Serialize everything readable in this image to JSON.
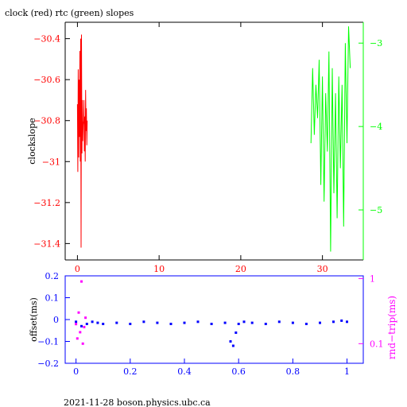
{
  "page": {
    "title": "clock (red) rtc (green) slopes",
    "footer": "2021-11-28  boson.physics.ubc.ca"
  },
  "colors": {
    "clock": "#ff0000",
    "rtc": "#00ff00",
    "offset": "#0000ff",
    "rndtrip": "#ff00ff",
    "axis": "#000000"
  },
  "chart_data": [
    {
      "type": "line",
      "title": "clock (red) rtc (green) slopes",
      "ylabel": "clockslope",
      "xlim": [
        -1.5,
        35
      ],
      "ylim": [
        -31.48,
        -30.32
      ],
      "y2lim": [
        -5.6,
        -2.75
      ],
      "x_ticks": [
        0,
        10,
        20,
        30
      ],
      "y_ticks": [
        -30.4,
        -30.6,
        -30.8,
        -31,
        -31.2,
        -31.4
      ],
      "y2_ticks": [
        -3,
        -4,
        -5
      ],
      "grid": false,
      "series": [
        {
          "name": "clock",
          "axis": "left",
          "x": [
            0.0,
            0.05,
            0.1,
            0.15,
            0.2,
            0.25,
            0.3,
            0.35,
            0.4,
            0.45,
            0.5,
            0.55,
            0.6,
            0.65,
            0.7,
            0.75,
            0.8,
            0.85,
            0.9,
            0.95,
            1.0,
            1.05,
            1.1,
            1.15,
            1.2
          ],
          "y": [
            -30.72,
            -31.05,
            -30.55,
            -30.98,
            -30.6,
            -30.88,
            -30.46,
            -31.0,
            -30.4,
            -31.42,
            -30.38,
            -30.96,
            -30.7,
            -30.9,
            -30.82,
            -30.8,
            -30.7,
            -30.95,
            -30.78,
            -31.0,
            -30.65,
            -30.85,
            -30.74,
            -30.92,
            -30.8
          ]
        },
        {
          "name": "rtc",
          "axis": "right",
          "x": [
            28.6,
            28.8,
            29.0,
            29.2,
            29.4,
            29.6,
            29.8,
            30.0,
            30.2,
            30.4,
            30.6,
            30.8,
            31.0,
            31.2,
            31.4,
            31.6,
            31.8,
            32.0,
            32.2,
            32.4,
            32.6,
            32.8,
            33.0,
            33.2,
            33.4
          ],
          "y": [
            -4.2,
            -3.3,
            -4.1,
            -3.5,
            -3.9,
            -3.2,
            -4.7,
            -3.4,
            -4.9,
            -3.6,
            -4.3,
            -3.1,
            -5.5,
            -3.3,
            -4.8,
            -3.6,
            -5.1,
            -3.4,
            -4.5,
            -3.5,
            -5.2,
            -3.0,
            -4.2,
            -2.8,
            -3.3
          ]
        }
      ]
    },
    {
      "type": "scatter",
      "ylabel": "offset(ms)",
      "y2label": "rnd−trip(ms)",
      "xlim": [
        -0.04,
        1.06
      ],
      "ylim": [
        -0.2,
        0.2
      ],
      "y2lim": [
        0.05,
        1.1
      ],
      "y2_scale": "log",
      "x_ticks": [
        0,
        0.2,
        0.4,
        0.6,
        0.8,
        1
      ],
      "y_ticks": [
        0.2,
        0.1,
        0,
        -0.1,
        -0.2
      ],
      "y2_ticks": [
        1,
        0.1
      ],
      "grid": false,
      "series": [
        {
          "name": "offset",
          "axis": "left",
          "x": [
            0.0,
            0.02,
            0.04,
            0.06,
            0.08,
            0.1,
            0.15,
            0.2,
            0.25,
            0.3,
            0.35,
            0.4,
            0.45,
            0.5,
            0.55,
            0.57,
            0.58,
            0.59,
            0.6,
            0.62,
            0.65,
            0.7,
            0.75,
            0.8,
            0.85,
            0.9,
            0.95,
            0.98,
            1.0
          ],
          "y": [
            -0.01,
            -0.03,
            -0.02,
            -0.01,
            -0.015,
            -0.02,
            -0.015,
            -0.02,
            -0.01,
            -0.015,
            -0.02,
            -0.015,
            -0.01,
            -0.02,
            -0.015,
            -0.1,
            -0.12,
            -0.06,
            -0.02,
            -0.01,
            -0.015,
            -0.02,
            -0.01,
            -0.015,
            -0.02,
            -0.015,
            -0.01,
            -0.005,
            -0.01
          ]
        },
        {
          "name": "rnd-trip",
          "axis": "right",
          "x": [
            0.0,
            0.005,
            0.01,
            0.015,
            0.02,
            0.025,
            0.03,
            0.035
          ],
          "y": [
            0.2,
            0.12,
            0.3,
            0.15,
            0.9,
            0.1,
            0.18,
            0.25
          ]
        }
      ]
    }
  ]
}
